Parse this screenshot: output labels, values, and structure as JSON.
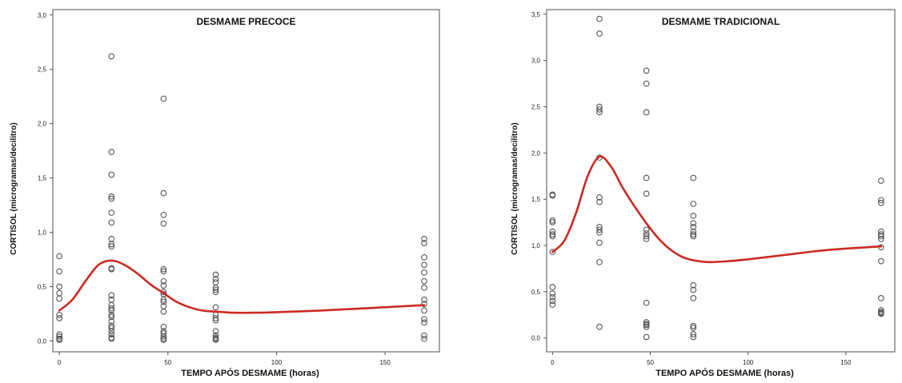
{
  "chart_data": [
    {
      "type": "scatter",
      "title": "DESMAME PRECOCE",
      "xlabel": "TEMPO APÓS DESMAME (horas)",
      "ylabel": "CORTISOL (microgramas/decilitro)",
      "xlim": [
        -3,
        175
      ],
      "ylim": [
        -0.1,
        3.05
      ],
      "xticks": [
        0,
        50,
        100,
        150
      ],
      "xtick_labels": [
        "0",
        "50",
        "100",
        "150"
      ],
      "yticks": [
        0.0,
        0.5,
        1.0,
        1.5,
        2.0,
        2.5,
        3.0
      ],
      "ytick_labels": [
        "0,0",
        "0,5",
        "1,0",
        "1,5",
        "2,0",
        "2,5",
        "3,0"
      ],
      "grid": false,
      "legend": "none",
      "point_color": "#555555",
      "curve_color": "#cc2a22",
      "points": {
        "x": [
          0,
          0,
          0,
          0,
          0,
          0,
          0,
          0,
          0,
          0,
          0,
          0,
          24,
          24,
          24,
          24,
          24,
          24,
          24,
          24,
          24,
          24,
          24,
          24,
          24,
          24,
          24,
          24,
          24,
          24,
          24,
          24,
          24,
          24,
          24,
          24,
          24,
          24,
          48,
          48,
          48,
          48,
          48,
          48,
          48,
          48,
          48,
          48,
          48,
          48,
          48,
          48,
          48,
          48,
          48,
          48,
          48,
          48,
          72,
          72,
          72,
          72,
          72,
          72,
          72,
          72,
          72,
          72,
          72,
          72,
          72,
          72,
          72,
          168,
          168,
          168,
          168,
          168,
          168,
          168,
          168,
          168,
          168,
          168,
          168,
          168,
          168
        ],
        "y": [
          0.78,
          0.64,
          0.5,
          0.44,
          0.39,
          0.24,
          0.21,
          0.06,
          0.04,
          0.02,
          0.02,
          0.01,
          2.62,
          1.74,
          1.53,
          1.33,
          1.31,
          1.18,
          1.09,
          0.94,
          0.89,
          0.87,
          0.67,
          0.66,
          0.42,
          0.38,
          0.33,
          0.3,
          0.28,
          0.24,
          0.22,
          0.18,
          0.14,
          0.12,
          0.09,
          0.06,
          0.03,
          0.02,
          2.23,
          1.36,
          1.16,
          1.08,
          0.66,
          0.64,
          0.55,
          0.51,
          0.45,
          0.43,
          0.38,
          0.36,
          0.32,
          0.27,
          0.13,
          0.09,
          0.07,
          0.04,
          0.02,
          0.01,
          0.61,
          0.57,
          0.54,
          0.49,
          0.47,
          0.45,
          0.31,
          0.24,
          0.21,
          0.19,
          0.09,
          0.05,
          0.03,
          0.02,
          0.01,
          0.94,
          0.9,
          0.77,
          0.7,
          0.63,
          0.55,
          0.49,
          0.38,
          0.34,
          0.28,
          0.2,
          0.17,
          0.05,
          0.02
        ]
      },
      "fit_curve": {
        "x": [
          0,
          6,
          12,
          18,
          24,
          30,
          36,
          42,
          48,
          54,
          60,
          66,
          72,
          80,
          90,
          100,
          120,
          140,
          168
        ],
        "y": [
          0.28,
          0.38,
          0.55,
          0.7,
          0.74,
          0.7,
          0.62,
          0.52,
          0.44,
          0.36,
          0.31,
          0.28,
          0.27,
          0.26,
          0.26,
          0.265,
          0.28,
          0.3,
          0.33
        ]
      }
    },
    {
      "type": "scatter",
      "title": "DESMAME TRADICIONAL",
      "xlabel": "TEMPO APÓS DESMAME (horas)",
      "ylabel": "CORTISOL (microgramas/decilitro)",
      "xlim": [
        -3,
        175
      ],
      "ylim": [
        -0.15,
        3.55
      ],
      "xticks": [
        0,
        50,
        100,
        150
      ],
      "xtick_labels": [
        "0",
        "50",
        "100",
        "150"
      ],
      "yticks": [
        0.0,
        0.5,
        1.0,
        1.5,
        2.0,
        2.5,
        3.0,
        3.5
      ],
      "ytick_labels": [
        "0,0",
        "0,5",
        "1,0",
        "1,5",
        "2,0",
        "2,5",
        "3,0",
        "3,5"
      ],
      "grid": false,
      "legend": "none",
      "point_color": "#555555",
      "curve_color": "#cc2a22",
      "points": {
        "x": [
          0,
          0,
          0,
          0,
          0,
          0,
          0,
          0,
          0,
          0,
          0,
          0,
          0,
          24,
          24,
          24,
          24,
          24,
          24,
          24,
          24,
          24,
          24,
          24,
          24,
          24,
          24,
          48,
          48,
          48,
          48,
          48,
          48,
          48,
          48,
          48,
          48,
          48,
          48,
          48,
          48,
          48,
          72,
          72,
          72,
          72,
          72,
          72,
          72,
          72,
          72,
          72,
          72,
          72,
          72,
          72,
          72,
          168,
          168,
          168,
          168,
          168,
          168,
          168,
          168,
          168,
          168,
          168,
          168,
          168,
          168
        ],
        "y": [
          1.55,
          1.54,
          1.27,
          1.25,
          1.15,
          1.12,
          1.1,
          0.93,
          0.55,
          0.48,
          0.44,
          0.4,
          0.36,
          3.45,
          3.29,
          2.5,
          2.47,
          2.44,
          1.95,
          1.52,
          1.47,
          1.2,
          1.17,
          1.14,
          1.03,
          0.82,
          0.12,
          2.89,
          2.75,
          2.44,
          1.73,
          1.56,
          1.17,
          1.13,
          1.1,
          1.07,
          0.38,
          0.17,
          0.15,
          0.14,
          0.12,
          0.01,
          1.73,
          1.45,
          1.32,
          1.24,
          1.2,
          1.15,
          1.12,
          1.1,
          0.57,
          0.52,
          0.43,
          0.13,
          0.11,
          0.04,
          0.01,
          1.7,
          1.49,
          1.46,
          1.15,
          1.12,
          1.1,
          1.07,
          0.98,
          0.83,
          0.43,
          0.3,
          0.28,
          0.27,
          0.26
        ]
      },
      "fit_curve": {
        "x": [
          0,
          6,
          12,
          18,
          24,
          30,
          36,
          42,
          48,
          54,
          60,
          66,
          72,
          80,
          90,
          100,
          120,
          140,
          168
        ],
        "y": [
          0.93,
          1.05,
          1.35,
          1.75,
          1.96,
          1.85,
          1.62,
          1.42,
          1.24,
          1.08,
          0.96,
          0.88,
          0.84,
          0.82,
          0.83,
          0.85,
          0.9,
          0.95,
          0.99
        ]
      }
    }
  ]
}
